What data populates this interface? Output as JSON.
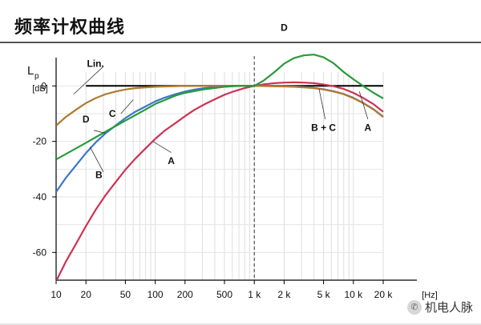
{
  "page": {
    "title": "频率计权曲线",
    "watermark": "机电人脉"
  },
  "chart_data": {
    "type": "line",
    "title": "",
    "xlabel": "[Hz]",
    "ylabel": "Lp",
    "ylabel_unit": "[dB]",
    "xscale": "log",
    "xlim": [
      10,
      20000
    ],
    "ylim": [
      -70,
      5
    ],
    "grid": true,
    "x_ticks": [
      {
        "value": 10,
        "label": "10"
      },
      {
        "value": 20,
        "label": "20"
      },
      {
        "value": 50,
        "label": "50"
      },
      {
        "value": 100,
        "label": "100"
      },
      {
        "value": 200,
        "label": "200"
      },
      {
        "value": 500,
        "label": "500"
      },
      {
        "value": 1000,
        "label": "1 k"
      },
      {
        "value": 2000,
        "label": "2 k"
      },
      {
        "value": 5000,
        "label": "5 k"
      },
      {
        "value": 10000,
        "label": "10 k"
      },
      {
        "value": 20000,
        "label": "20 k"
      }
    ],
    "y_ticks": [
      {
        "value": 0,
        "label": "0"
      },
      {
        "value": -20,
        "label": "-20"
      },
      {
        "value": -40,
        "label": "-40"
      },
      {
        "value": -60,
        "label": "-60"
      }
    ],
    "reference_line_x": 1000,
    "series": [
      {
        "name": "Lin.",
        "color": "#000000",
        "points": [
          [
            20,
            0
          ],
          [
            20000,
            0
          ]
        ]
      },
      {
        "name": "A",
        "color": "#cc3355",
        "points": [
          [
            10,
            -70.4
          ],
          [
            12.5,
            -63.4
          ],
          [
            16,
            -56.7
          ],
          [
            20,
            -50.5
          ],
          [
            25,
            -44.7
          ],
          [
            31.5,
            -39.4
          ],
          [
            40,
            -34.6
          ],
          [
            50,
            -30.2
          ],
          [
            63,
            -26.2
          ],
          [
            80,
            -22.5
          ],
          [
            100,
            -19.1
          ],
          [
            125,
            -16.1
          ],
          [
            160,
            -13.4
          ],
          [
            200,
            -10.9
          ],
          [
            250,
            -8.6
          ],
          [
            315,
            -6.6
          ],
          [
            400,
            -4.8
          ],
          [
            500,
            -3.2
          ],
          [
            630,
            -1.9
          ],
          [
            800,
            -0.8
          ],
          [
            1000,
            0
          ],
          [
            1250,
            0.6
          ],
          [
            1600,
            1.0
          ],
          [
            2000,
            1.2
          ],
          [
            2500,
            1.3
          ],
          [
            3150,
            1.2
          ],
          [
            4000,
            1.0
          ],
          [
            5000,
            0.5
          ],
          [
            6300,
            -0.1
          ],
          [
            8000,
            -1.1
          ],
          [
            10000,
            -2.5
          ],
          [
            12500,
            -4.3
          ],
          [
            16000,
            -6.6
          ],
          [
            20000,
            -9.3
          ]
        ]
      },
      {
        "name": "B",
        "color": "#3a78c8",
        "points": [
          [
            10,
            -38.2
          ],
          [
            12.5,
            -33.2
          ],
          [
            16,
            -28.5
          ],
          [
            20,
            -24.2
          ],
          [
            25,
            -20.4
          ],
          [
            31.5,
            -17.1
          ],
          [
            40,
            -14.2
          ],
          [
            50,
            -11.6
          ],
          [
            63,
            -9.3
          ],
          [
            80,
            -7.4
          ],
          [
            100,
            -5.6
          ],
          [
            125,
            -4.2
          ],
          [
            160,
            -3.0
          ],
          [
            200,
            -2.0
          ],
          [
            250,
            -1.3
          ],
          [
            315,
            -0.8
          ],
          [
            400,
            -0.5
          ],
          [
            500,
            -0.3
          ],
          [
            630,
            -0.1
          ],
          [
            800,
            0
          ],
          [
            1000,
            0
          ],
          [
            1250,
            0
          ],
          [
            1600,
            0
          ],
          [
            2000,
            -0.1
          ],
          [
            2500,
            -0.2
          ],
          [
            3150,
            -0.4
          ],
          [
            4000,
            -0.7
          ],
          [
            5000,
            -1.2
          ],
          [
            6300,
            -1.9
          ],
          [
            8000,
            -2.9
          ],
          [
            10000,
            -4.3
          ],
          [
            12500,
            -6.1
          ],
          [
            16000,
            -8.4
          ],
          [
            20000,
            -11.1
          ]
        ]
      },
      {
        "name": "C",
        "color": "#b07a30",
        "points": [
          [
            10,
            -14.3
          ],
          [
            12.5,
            -11.2
          ],
          [
            16,
            -8.5
          ],
          [
            20,
            -6.2
          ],
          [
            25,
            -4.4
          ],
          [
            31.5,
            -3.0
          ],
          [
            40,
            -2.0
          ],
          [
            50,
            -1.3
          ],
          [
            63,
            -0.8
          ],
          [
            80,
            -0.5
          ],
          [
            100,
            -0.3
          ],
          [
            125,
            -0.2
          ],
          [
            160,
            -0.1
          ],
          [
            200,
            0
          ],
          [
            1000,
            0
          ],
          [
            2000,
            -0.2
          ],
          [
            2500,
            -0.3
          ],
          [
            3150,
            -0.5
          ],
          [
            4000,
            -0.8
          ],
          [
            5000,
            -1.3
          ],
          [
            6300,
            -2.0
          ],
          [
            8000,
            -3.0
          ],
          [
            10000,
            -4.4
          ],
          [
            12500,
            -6.2
          ],
          [
            16000,
            -8.5
          ],
          [
            20000,
            -11.2
          ]
        ]
      },
      {
        "name": "D",
        "color": "#2a9a3a",
        "points": [
          [
            10,
            -26.5
          ],
          [
            20,
            -20.5
          ],
          [
            31.5,
            -16.5
          ],
          [
            50,
            -12.5
          ],
          [
            80,
            -8.5
          ],
          [
            100,
            -6.5
          ],
          [
            160,
            -3.5
          ],
          [
            200,
            -2.5
          ],
          [
            315,
            -1.2
          ],
          [
            500,
            -0.3
          ],
          [
            630,
            0
          ],
          [
            800,
            0
          ],
          [
            1000,
            0
          ],
          [
            1250,
            2.0
          ],
          [
            1600,
            5.0
          ],
          [
            2000,
            8.0
          ],
          [
            2500,
            10.0
          ],
          [
            3150,
            11.0
          ],
          [
            4000,
            11.3
          ],
          [
            5000,
            10.3
          ],
          [
            6300,
            8.2
          ],
          [
            8000,
            5.0
          ],
          [
            10000,
            2.4
          ],
          [
            12500,
            0
          ],
          [
            16000,
            -2.5
          ],
          [
            20000,
            -4.5
          ]
        ]
      }
    ],
    "curve_labels": [
      {
        "text": "Lin.",
        "x": 25,
        "y": 8
      },
      {
        "text": "C",
        "x": 37,
        "y": -10
      },
      {
        "text": "D",
        "x": 20,
        "y": -12
      },
      {
        "text": "B",
        "x": 27,
        "y": -32
      },
      {
        "text": "A",
        "x": 145,
        "y": -27
      },
      {
        "text": "D",
        "x": 2000,
        "y": 21
      },
      {
        "text": "B + C",
        "x": 5000,
        "y": -15
      },
      {
        "text": "A",
        "x": 14000,
        "y": -15
      }
    ],
    "label_leaders": [
      [
        [
          30,
          7
        ],
        [
          15,
          -3.0
        ]
      ],
      [
        [
          45,
          -10
        ],
        [
          60,
          -5
        ]
      ],
      [
        [
          24,
          -16
        ],
        [
          31,
          -17
        ]
      ],
      [
        [
          30,
          -31
        ],
        [
          22,
          -22
        ]
      ],
      [
        [
          145,
          -24
        ],
        [
          95,
          -20
        ]
      ],
      [
        [
          5200,
          -12
        ],
        [
          4500,
          -1
        ]
      ],
      [
        [
          14000,
          -12
        ],
        [
          11500,
          -2
        ]
      ]
    ]
  }
}
